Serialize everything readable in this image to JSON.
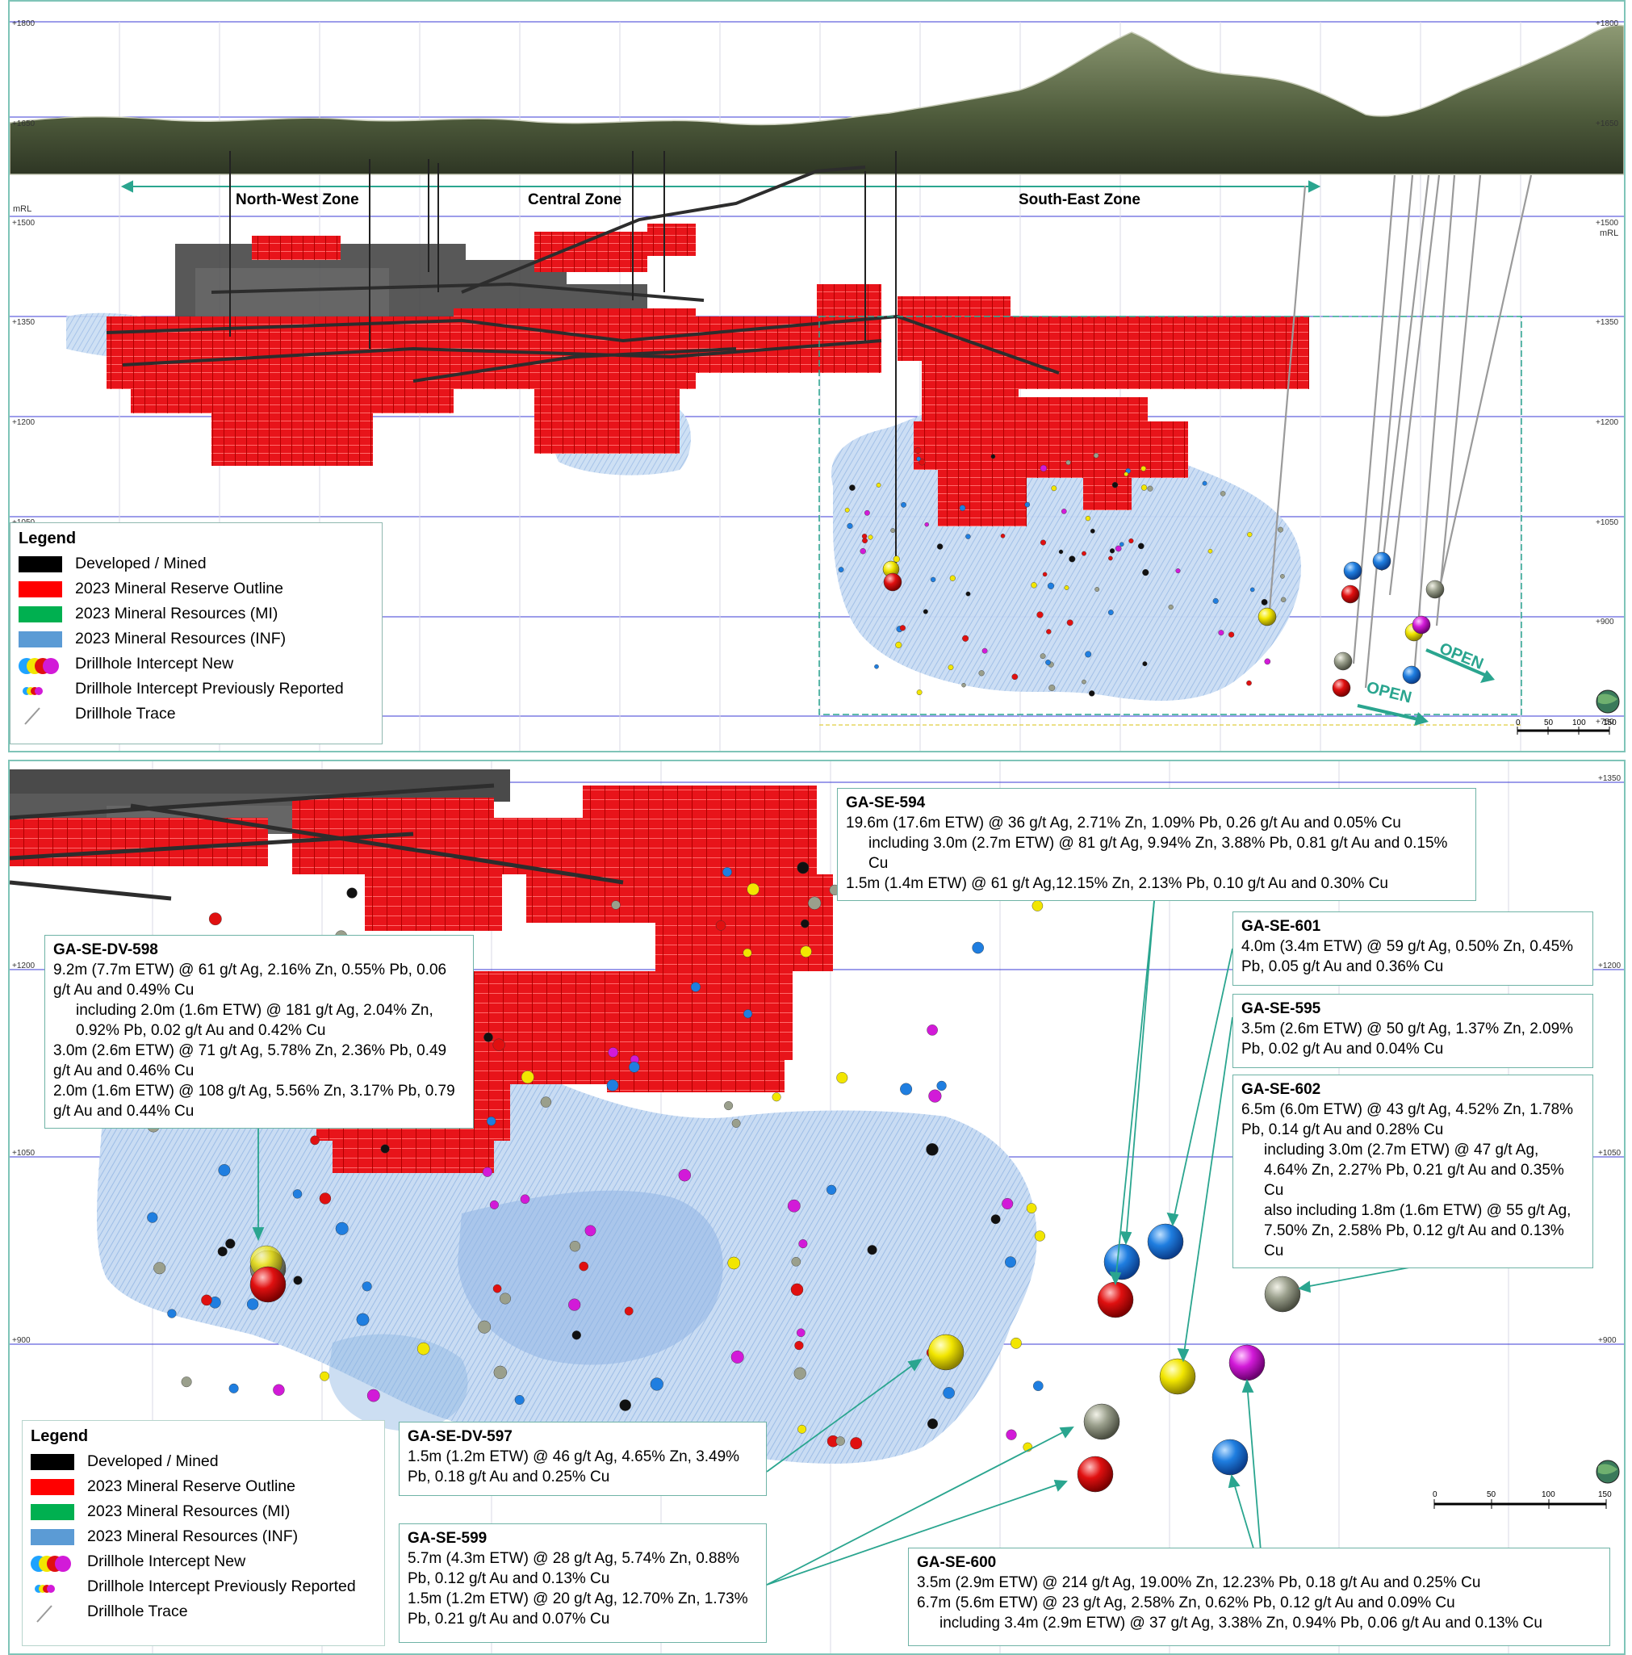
{
  "top_panel": {
    "zones": [
      {
        "label": "North-West Zone"
      },
      {
        "label": "Central Zone"
      },
      {
        "label": "South-East Zone"
      }
    ],
    "axis_unit_left": "mRL",
    "axis_unit_right": "mRL",
    "elevation_labels": [
      "+1800",
      "+1650",
      "+1500",
      "+1350",
      "+1200",
      "+1050",
      "+900",
      "+750"
    ],
    "open_labels": [
      "OPEN",
      "OPEN"
    ],
    "scale": {
      "ticks": [
        "0",
        "50",
        "100",
        "150"
      ]
    }
  },
  "bottom_panel": {
    "elevation_labels": [
      "+1350",
      "+1200",
      "+1050",
      "+900"
    ],
    "scale": {
      "ticks": [
        "0",
        "50",
        "100",
        "150"
      ]
    }
  },
  "legend": {
    "title": "Legend",
    "items": [
      {
        "label": "Developed / Mined",
        "color": "#000000"
      },
      {
        "label": "2023 Mineral Reserve Outline",
        "color": "#ff0000"
      },
      {
        "label": "2023 Mineral Resources (MI)",
        "color": "#00b050"
      },
      {
        "label": "2023 Mineral Resources (INF)",
        "color": "#5b9bd5"
      },
      {
        "label": "Drillhole Intercept New"
      },
      {
        "label": "Drillhole Intercept Previously Reported"
      },
      {
        "label": "Drillhole Trace"
      }
    ]
  },
  "annotations": [
    {
      "id": "GA-SE-594",
      "lines": [
        "19.6m (17.6m ETW) @ 36 g/t Ag, 2.71% Zn, 1.09% Pb, 0.26 g/t Au and 0.05% Cu",
        "including 3.0m (2.7m ETW) @ 81 g/t Ag, 9.94% Zn, 3.88% Pb, 0.81 g/t Au and 0.15% Cu",
        "1.5m (1.4m ETW) @ 61 g/t Ag,12.15% Zn, 2.13% Pb, 0.10 g/t Au and 0.30% Cu"
      ]
    },
    {
      "id": "GA-SE-601",
      "lines": [
        "4.0m (3.4m ETW) @ 59 g/t Ag, 0.50% Zn, 0.45% Pb, 0.05 g/t Au and 0.36% Cu"
      ]
    },
    {
      "id": "GA-SE-595",
      "lines": [
        "3.5m (2.6m ETW) @ 50 g/t Ag, 1.37% Zn, 2.09% Pb, 0.02 g/t Au and 0.04% Cu"
      ]
    },
    {
      "id": "GA-SE-602",
      "lines": [
        "6.5m (6.0m ETW) @ 43 g/t Ag, 4.52% Zn, 1.78% Pb, 0.14 g/t Au and 0.28% Cu",
        "including 3.0m (2.7m ETW) @ 47 g/t Ag, 4.64% Zn, 2.27% Pb, 0.21 g/t Au and 0.35% Cu",
        "also including 1.8m (1.6m ETW) @ 55 g/t Ag, 7.50% Zn, 2.58% Pb, 0.12 g/t Au and 0.13% Cu"
      ]
    },
    {
      "id": "GA-SE-DV-598",
      "lines": [
        "9.2m (7.7m ETW) @ 61 g/t Ag, 2.16% Zn, 0.55% Pb, 0.06 g/t Au and 0.49% Cu",
        "including 2.0m (1.6m ETW) @ 181 g/t Ag, 2.04% Zn, 0.92% Pb, 0.02 g/t Au and 0.42% Cu",
        "3.0m (2.6m ETW) @ 71 g/t Ag, 5.78% Zn, 2.36% Pb, 0.49 g/t Au and 0.46% Cu",
        "2.0m (1.6m ETW) @ 108 g/t Ag, 5.56% Zn, 3.17% Pb, 0.79 g/t Au and 0.44% Cu"
      ]
    },
    {
      "id": "GA-SE-DV-597",
      "lines": [
        "1.5m (1.2m ETW) @ 46 g/t Ag, 4.65% Zn, 3.49% Pb, 0.18 g/t Au and 0.25% Cu"
      ]
    },
    {
      "id": "GA-SE-599",
      "lines": [
        "5.7m (4.3m ETW) @ 28 g/t Ag, 5.74% Zn, 0.88% Pb, 0.12 g/t Au and 0.13% Cu",
        "1.5m (1.2m ETW) @ 20 g/t Ag, 12.70% Zn, 1.73% Pb, 0.21 g/t Au and 0.07% Cu"
      ]
    },
    {
      "id": "GA-SE-600",
      "lines": [
        "3.5m (2.9m ETW) @ 214 g/t Ag, 19.00% Zn, 12.23% Pb, 0.18 g/t Au and 0.25% Cu",
        "6.7m (5.6m ETW) @ 23 g/t Ag, 2.58% Zn, 0.62% Pb, 0.12 g/t Au and 0.09% Cu",
        "including 3.4m (2.9m ETW) @ 37 g/t Ag, 3.38% Zn, 0.94% Pb, 0.06 g/t Au and 0.13% Cu"
      ]
    }
  ],
  "colors": {
    "reserve": "#e8141a",
    "inferred": "#a9c8ec",
    "mined": "#4a4a4a",
    "terrain": "#4f5c3c",
    "grid": "#3b3bd6",
    "leader": "#2aa58f",
    "intercept_blue": "#1f7ee0",
    "intercept_red": "#e01010",
    "intercept_yellow": "#f2e600",
    "intercept_magenta": "#d21ad8",
    "intercept_grey": "#9a9f8c"
  }
}
